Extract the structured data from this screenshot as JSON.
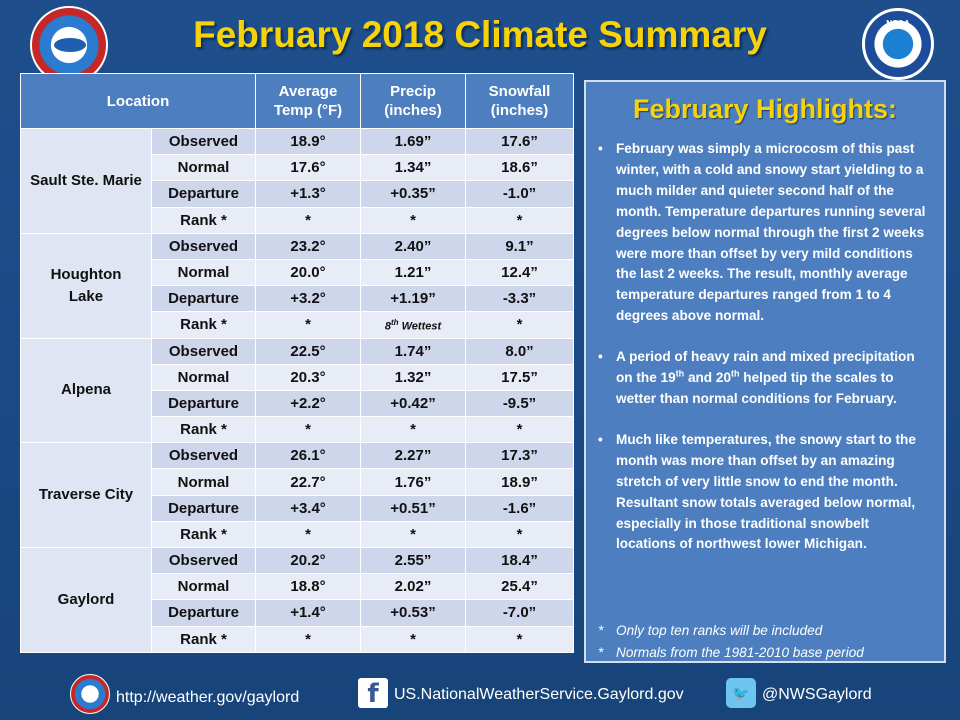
{
  "title": "February 2018 Climate Summary",
  "logos": {
    "left": "nws-logo",
    "right": "noaa-logo",
    "noaa_text": "NOAA"
  },
  "table": {
    "headers": {
      "location": "Location",
      "temp_line1": "Average",
      "temp_line2": "Temp (°F)",
      "precip_line1": "Precip",
      "precip_line2": "(inches)",
      "snow_line1": "Snowfall",
      "snow_line2": "(inches)"
    },
    "locations": [
      {
        "name_line1": "Sault Ste. Marie",
        "name_line2": "",
        "rows": [
          {
            "label": "Observed",
            "temp": "18.9°",
            "precip": "1.69”",
            "snow": "17.6”"
          },
          {
            "label": "Normal",
            "temp": "17.6°",
            "precip": "1.34”",
            "snow": "18.6”"
          },
          {
            "label": "Departure",
            "temp": "+1.3°",
            "precip": "+0.35”",
            "snow": "-1.0”"
          },
          {
            "label": "Rank *",
            "temp": "*",
            "precip": "*",
            "snow": "*"
          }
        ]
      },
      {
        "name_line1": "Houghton",
        "name_line2": "Lake",
        "rows": [
          {
            "label": "Observed",
            "temp": "23.2°",
            "precip": "2.40”",
            "snow": "9.1”"
          },
          {
            "label": "Normal",
            "temp": "20.0°",
            "precip": "1.21”",
            "snow": "12.4”"
          },
          {
            "label": "Departure",
            "temp": "+3.2°",
            "precip": "+1.19”",
            "snow": "-3.3”"
          },
          {
            "label": "Rank *",
            "temp": "*",
            "precip_num": "8",
            "precip_sup": "th",
            "precip_word": " Wettest",
            "snow": "*"
          }
        ]
      },
      {
        "name_line1": "Alpena",
        "name_line2": "",
        "rows": [
          {
            "label": "Observed",
            "temp": "22.5°",
            "precip": "1.74”",
            "snow": "8.0”"
          },
          {
            "label": "Normal",
            "temp": "20.3°",
            "precip": "1.32”",
            "snow": "17.5”"
          },
          {
            "label": "Departure",
            "temp": "+2.2°",
            "precip": "+0.42”",
            "snow": "-9.5”"
          },
          {
            "label": "Rank *",
            "temp": "*",
            "precip": "*",
            "snow": "*"
          }
        ]
      },
      {
        "name_line1": "Traverse City",
        "name_line2": "",
        "rows": [
          {
            "label": "Observed",
            "temp": "26.1°",
            "precip": "2.27”",
            "snow": "17.3”"
          },
          {
            "label": "Normal",
            "temp": "22.7°",
            "precip": "1.76”",
            "snow": "18.9”"
          },
          {
            "label": "Departure",
            "temp": "+3.4°",
            "precip": "+0.51”",
            "snow": "-1.6”"
          },
          {
            "label": "Rank *",
            "temp": "*",
            "precip": "*",
            "snow": "*"
          }
        ]
      },
      {
        "name_line1": "Gaylord",
        "name_line2": "",
        "rows": [
          {
            "label": "Observed",
            "temp": "20.2°",
            "precip": "2.55”",
            "snow": "18.4”"
          },
          {
            "label": "Normal",
            "temp": "18.8°",
            "precip": "2.02”",
            "snow": "25.4”"
          },
          {
            "label": "Departure",
            "temp": "+1.4°",
            "precip": "+0.53”",
            "snow": "-7.0”"
          },
          {
            "label": "Rank *",
            "temp": "*",
            "precip": "*",
            "snow": "*"
          }
        ]
      }
    ]
  },
  "highlights": {
    "title": "February Highlights:",
    "bullet1": "February was simply a microcosm of this past winter, with a cold and snowy start yielding to a much milder and quieter second half of the month. Temperature departures running several degrees below normal through the first 2 weeks were more than offset by very mild conditions the last 2 weeks. The result, monthly average temperature departures ranged from 1 to 4 degrees above normal.",
    "bullet2_a": "A period of heavy rain and mixed precipitation on the 19",
    "bullet2_sup1": "th",
    "bullet2_b": " and 20",
    "bullet2_sup2": "th",
    "bullet2_c": " helped tip the scales to wetter than normal conditions for February.",
    "bullet3": "Much like temperatures, the snowy start to the month was more than offset by an amazing stretch of very little snow to end the month. Resultant snow totals averaged below normal, especially in those traditional snowbelt locations of northwest lower Michigan.",
    "note1": "Only top ten ranks will be included",
    "note2": "Normals from the 1981-2010 base period",
    "note_star": "*"
  },
  "footer": {
    "website": "http://weather.gov/gaylord",
    "facebook": "US.NationalWeatherService.Gaylord.gov",
    "twitter": "@NWSGaylord",
    "fb_glyph": "f",
    "tw_glyph": "🐦"
  },
  "colors": {
    "title": "#f5d20a",
    "header": "#4d7fc0",
    "background": "#1e4f8c",
    "rank_highlight": "#d10000"
  }
}
